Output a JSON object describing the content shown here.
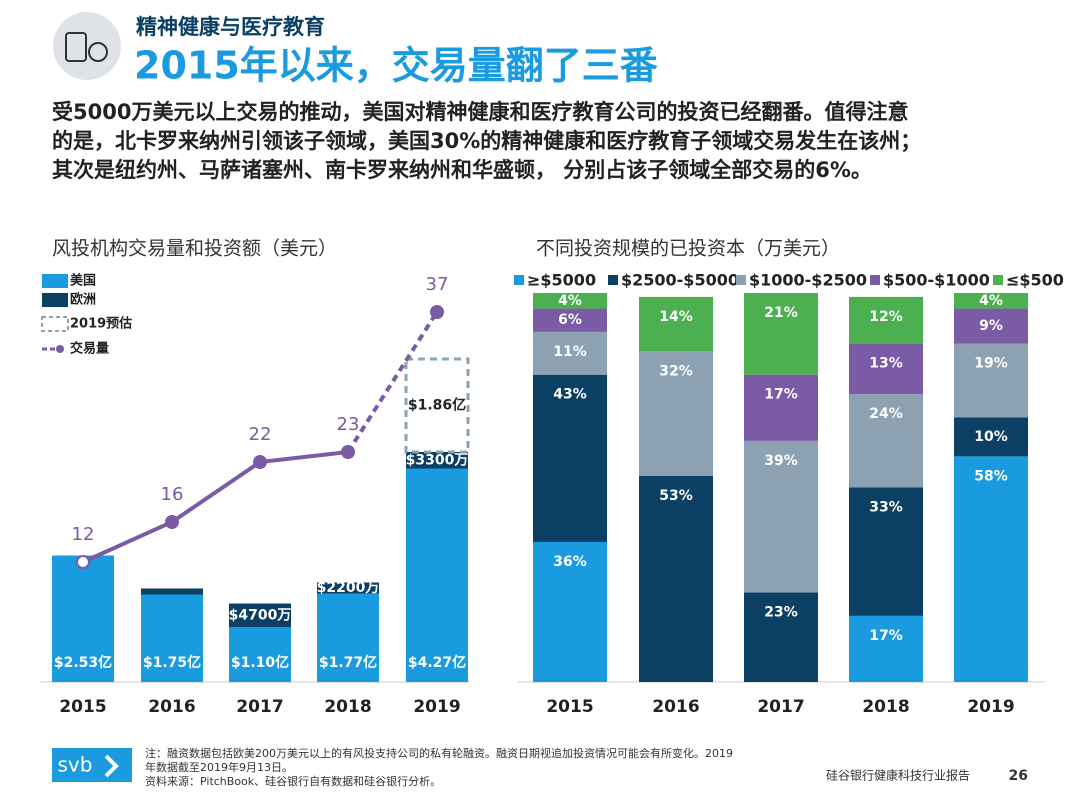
{
  "header": {
    "subtitle": "精神健康与医疗教育",
    "title": "2015年以来，交易量翻了三番"
  },
  "intro": [
    "受5000万美元以上交易的推动，美国对精神健康和医疗教育公司的投资已经翻番。值得注意",
    "的是，北卡罗来纳州引领该子领域，美国30%的精神健康和医疗教育子领域交易发生在该州；",
    "其次是纽约州、马萨诸塞州、南卡罗来纳州和华盛顿， 分别占该子领域全部交易的6%。"
  ],
  "chart_data": [
    {
      "type": "combo",
      "title": "风投机构交易量和投资额（美元）",
      "categories": [
        "2015",
        "2016",
        "2017",
        "2018",
        "2019"
      ],
      "series": [
        {
          "name": "美国",
          "color": "#1a9be0",
          "kind": "bar",
          "values": [
            2.53,
            1.75,
            1.1,
            1.77,
            4.27
          ],
          "value_labels": [
            "$2.53亿",
            "$1.75亿",
            "$1.10亿",
            "$1.77亿",
            "$4.27亿"
          ]
        },
        {
          "name": "欧洲",
          "color": "#0b3f63",
          "kind": "bar",
          "values": [
            null,
            0.12,
            0.47,
            0.22,
            0.33
          ],
          "value_labels": [
            null,
            null,
            "$4700万",
            "$2200万",
            "$3300万"
          ]
        },
        {
          "name": "2019预估",
          "color": "#8ca2b3",
          "kind": "forecast",
          "values": [
            null,
            null,
            null,
            null,
            1.86
          ],
          "value_labels": [
            null,
            null,
            null,
            null,
            "$1.86亿"
          ]
        },
        {
          "name": "交易量",
          "color": "#7b5aa6",
          "kind": "line",
          "values": [
            12,
            16,
            22,
            23,
            37
          ]
        }
      ]
    },
    {
      "type": "stacked-bar",
      "title": "不同投资规模的已投资本（万美元）",
      "categories": [
        "2015",
        "2016",
        "2017",
        "2018",
        "2019"
      ],
      "series": [
        {
          "name": "≥$5000",
          "color": "#1a9be0",
          "values": [
            36,
            null,
            null,
            17,
            58
          ],
          "value_labels": [
            "36%",
            null,
            null,
            "17%",
            "58%"
          ]
        },
        {
          "name": "$2500-$5000",
          "color": "#0b3f63",
          "values": [
            43,
            53,
            23,
            33,
            10
          ],
          "value_labels": [
            "43%",
            "53%",
            "23%",
            "33%",
            "10%"
          ]
        },
        {
          "name": "$1000-$2500",
          "color": "#8ca2b3",
          "values": [
            11,
            32,
            39,
            24,
            19
          ],
          "value_labels": [
            "11%",
            "32%",
            "39%",
            "24%",
            "19%"
          ]
        },
        {
          "name": "$500-$1000",
          "color": "#7b5aa6",
          "values": [
            6,
            null,
            17,
            13,
            9
          ],
          "value_labels": [
            "6%",
            null,
            "17%",
            "13%",
            "9%"
          ]
        },
        {
          "name": "≤$500",
          "color": "#4cb050",
          "values": [
            4,
            14,
            21,
            12,
            4
          ],
          "value_labels": [
            "4%",
            "14%",
            "21%",
            "12%",
            "4%"
          ]
        }
      ]
    }
  ],
  "footer": {
    "notes": [
      "注：融资数据包括欧美200万美元以上的有风投支持公司的私有轮融资。融资日期视追加投资情况可能会有所变化。2019",
      "年数据截至2019年9月13日。",
      "资料来源：PitchBook、硅谷银行自有数据和硅谷银行分析。"
    ],
    "logo": "svb",
    "report": "硅谷银行健康科技行业报告",
    "page": "26"
  }
}
